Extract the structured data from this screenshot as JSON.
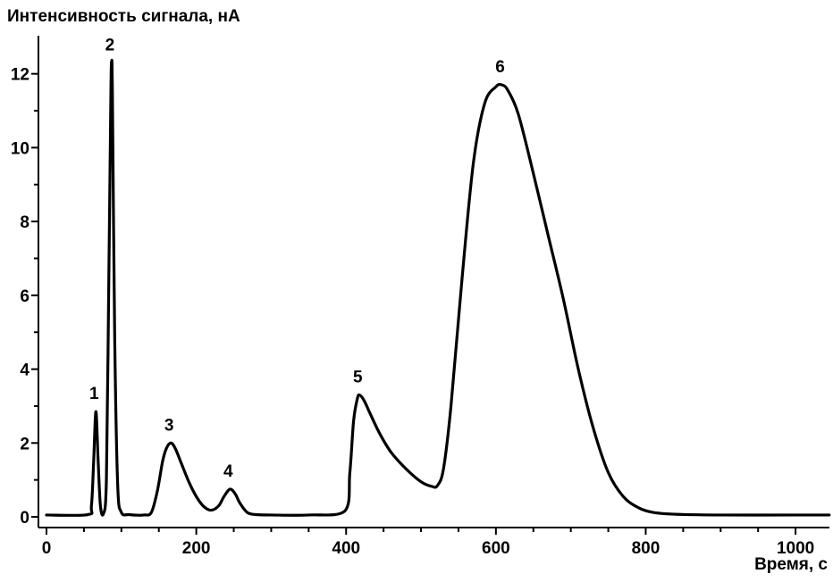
{
  "chart_data": {
    "type": "line",
    "xlabel": "Время, с",
    "ylabel": "Интенсивность сигнала, нА",
    "xlim": [
      0,
      1050
    ],
    "ylim": [
      0,
      12.5
    ],
    "x_ticks": [
      "0",
      "200",
      "400",
      "600",
      "800",
      "1000"
    ],
    "y_ticks": [
      "0",
      "2",
      "4",
      "6",
      "8",
      "10",
      "12"
    ],
    "x_minor_step": 50,
    "y_minor_step": 1,
    "grid": false,
    "legend": "none",
    "line_color": "#000000",
    "baseline": 0.05,
    "peaks": [
      {
        "label": "1",
        "x": 66,
        "y": 2.85
      },
      {
        "label": "2",
        "x": 87,
        "y": 12.3
      },
      {
        "label": "3",
        "x": 166,
        "y": 2.0
      },
      {
        "label": "4",
        "x": 245,
        "y": 0.75
      },
      {
        "label": "5",
        "x": 418,
        "y": 3.3
      },
      {
        "label": "6",
        "x": 608,
        "y": 11.7
      }
    ],
    "series": [
      {
        "x": [
          0,
          55,
          60,
          63,
          66,
          69,
          72,
          76,
          80,
          83,
          86,
          87,
          88,
          91,
          95,
          100,
          110,
          130,
          140,
          148,
          155,
          160,
          166,
          172,
          180,
          190,
          200,
          210,
          220,
          230,
          237,
          245,
          252,
          258,
          268,
          280,
          300,
          350,
          398,
          405,
          410,
          415,
          418,
          424,
          432,
          445,
          460,
          480,
          500,
          515,
          522,
          530,
          540,
          555,
          570,
          585,
          600,
          608,
          616,
          630,
          650,
          670,
          690,
          710,
          730,
          750,
          770,
          790,
          810,
          840,
          900,
          1000,
          1045
        ],
        "y": [
          0.05,
          0.06,
          0.3,
          1.5,
          2.85,
          1.5,
          0.3,
          0.08,
          1.0,
          6.0,
          11.5,
          12.3,
          11.5,
          5.0,
          0.9,
          0.12,
          0.06,
          0.05,
          0.12,
          0.7,
          1.5,
          1.85,
          2.0,
          1.85,
          1.45,
          0.95,
          0.55,
          0.28,
          0.18,
          0.3,
          0.55,
          0.75,
          0.62,
          0.38,
          0.12,
          0.06,
          0.05,
          0.05,
          0.15,
          1.2,
          2.6,
          3.2,
          3.3,
          3.15,
          2.8,
          2.25,
          1.75,
          1.3,
          0.95,
          0.82,
          0.85,
          1.3,
          3.0,
          6.5,
          9.6,
          11.2,
          11.65,
          11.7,
          11.55,
          10.9,
          9.3,
          7.6,
          5.9,
          4.0,
          2.4,
          1.2,
          0.55,
          0.25,
          0.12,
          0.07,
          0.05,
          0.05,
          0.05
        ]
      }
    ]
  }
}
